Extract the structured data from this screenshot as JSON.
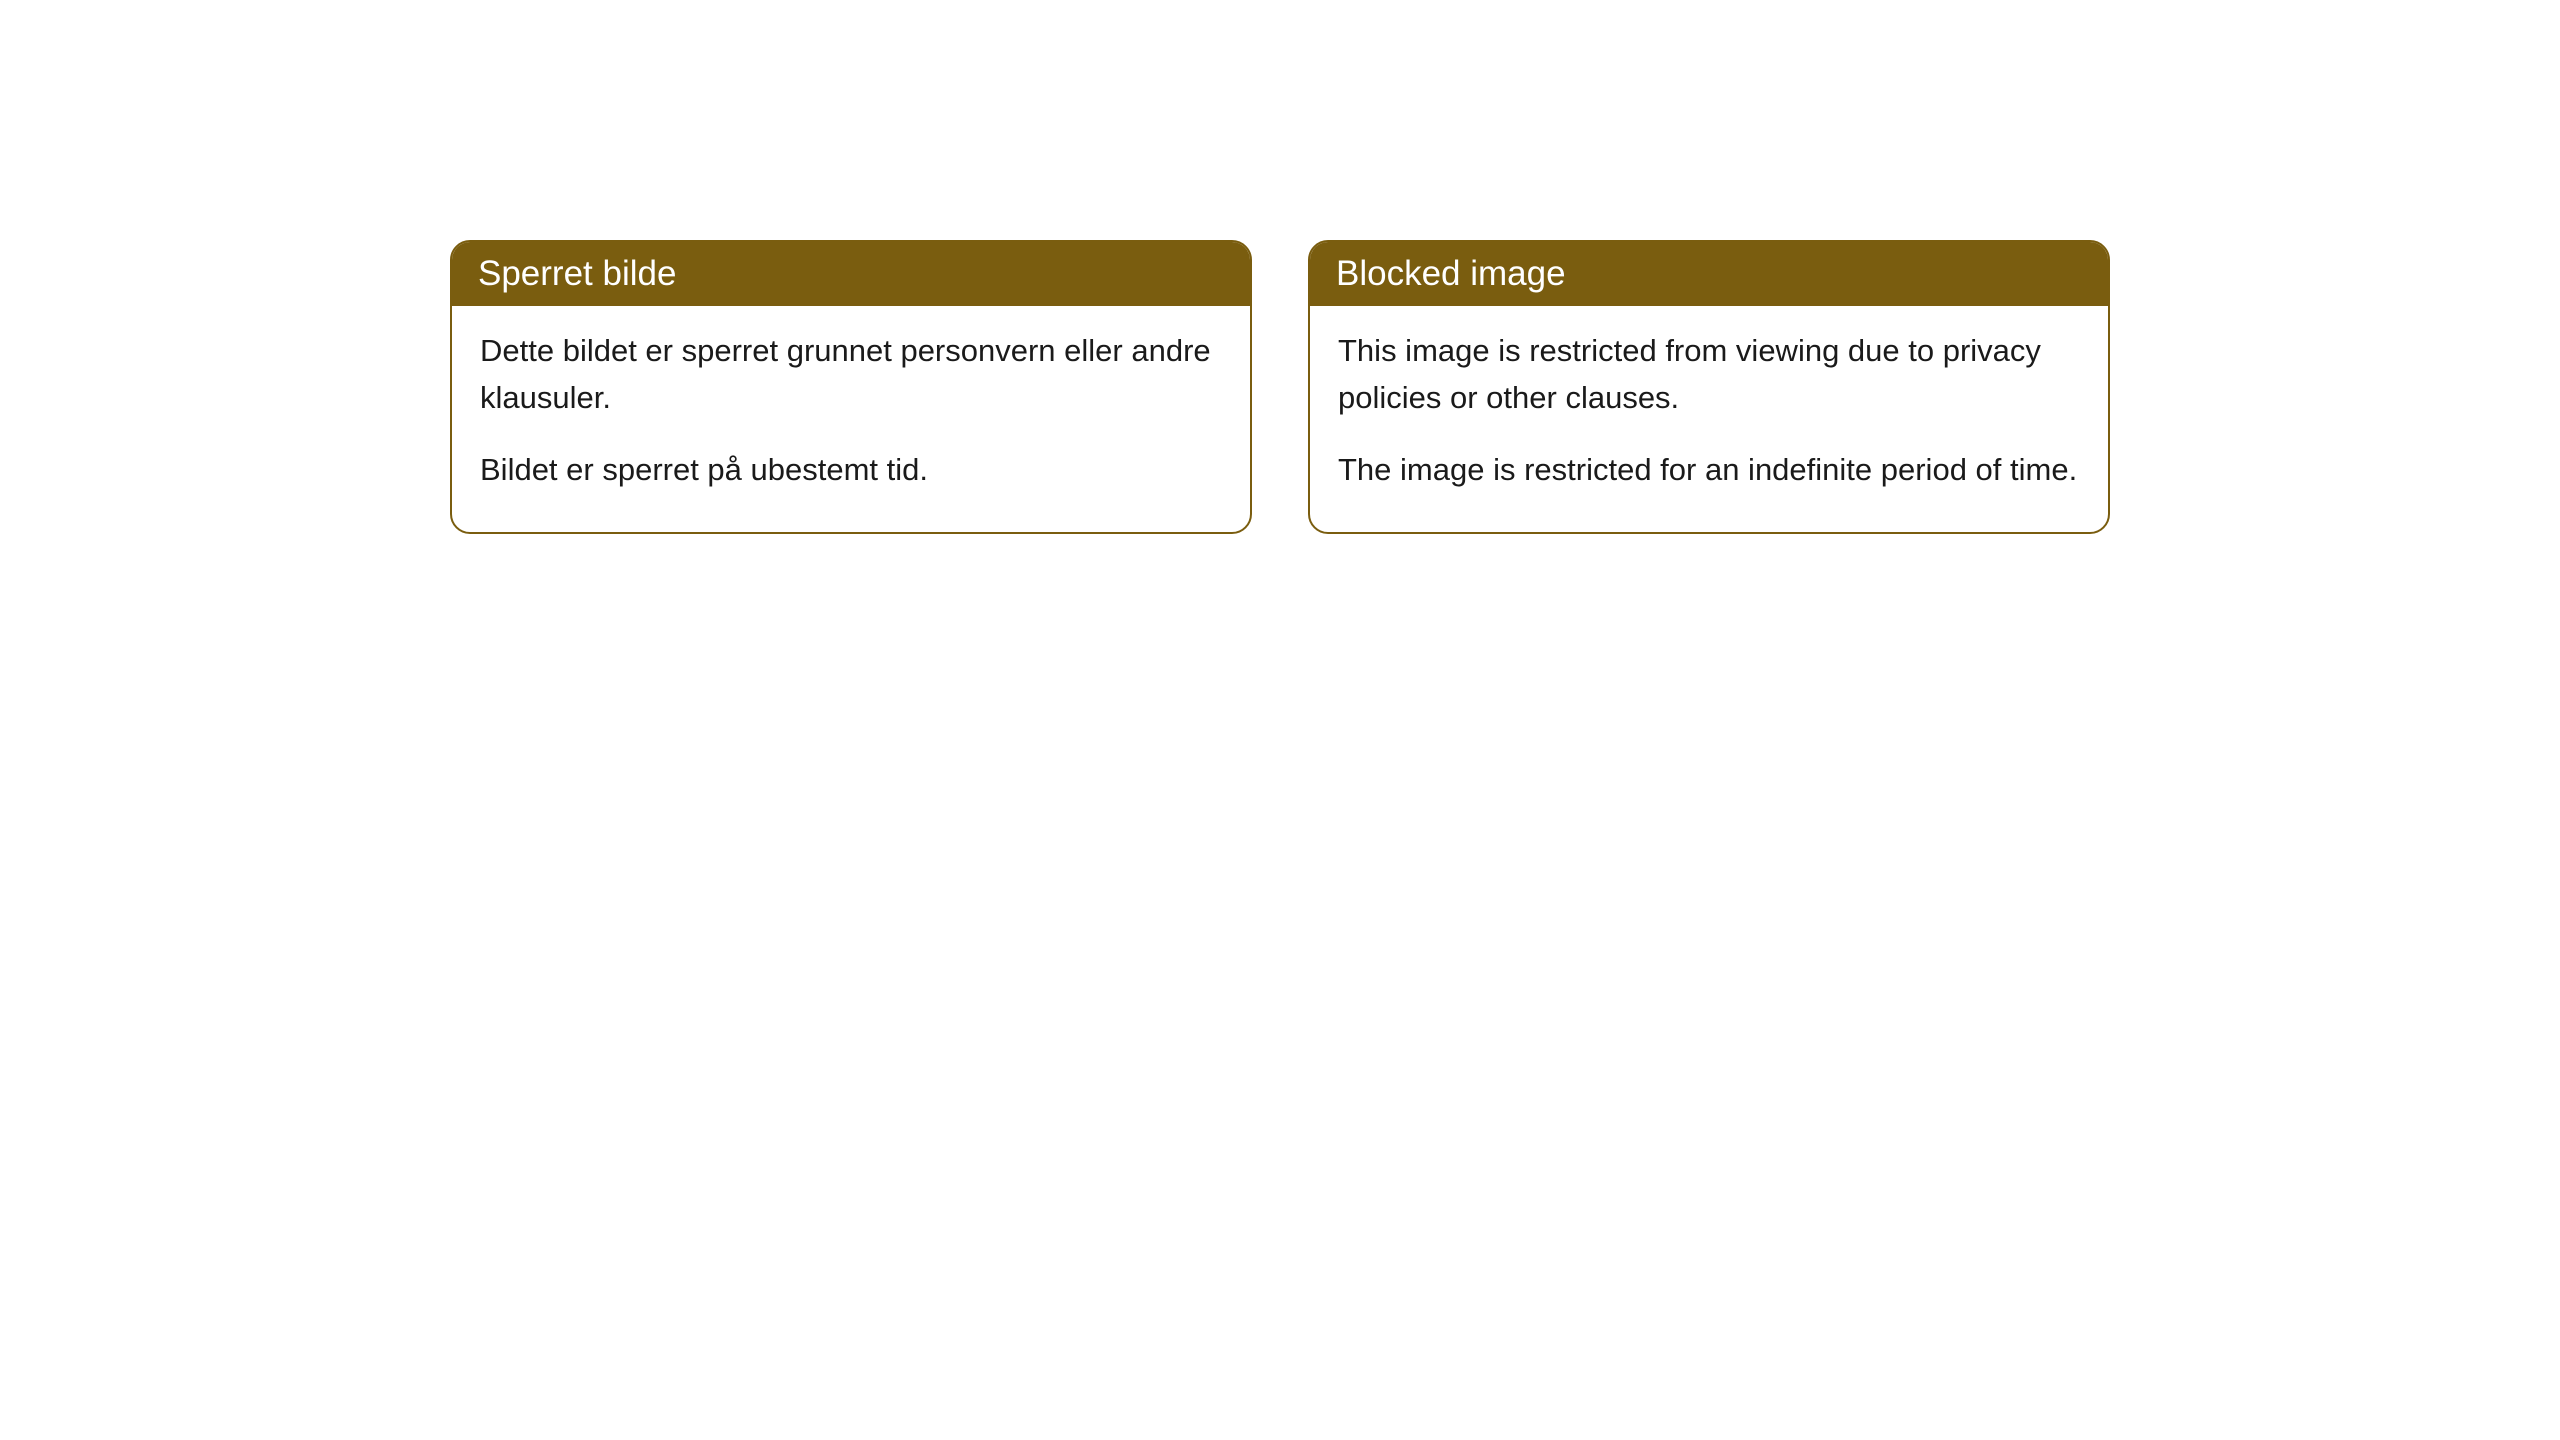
{
  "cards": [
    {
      "title": "Sperret bilde",
      "paragraph1": "Dette bildet er sperret grunnet personvern eller andre klausuler.",
      "paragraph2": "Bildet er sperret på ubestemt tid."
    },
    {
      "title": "Blocked image",
      "paragraph1": "This image is restricted from viewing due to privacy policies or other clauses.",
      "paragraph2": "The image is restricted for an indefinite period of time."
    }
  ],
  "style": {
    "header_background": "#7a5d0f",
    "header_text_color": "#ffffff",
    "border_color": "#7a5d0f",
    "body_text_color": "#1a1a1a",
    "body_background": "#ffffff",
    "page_background": "#ffffff",
    "border_radius": 20,
    "title_fontsize": 35,
    "body_fontsize": 31
  }
}
